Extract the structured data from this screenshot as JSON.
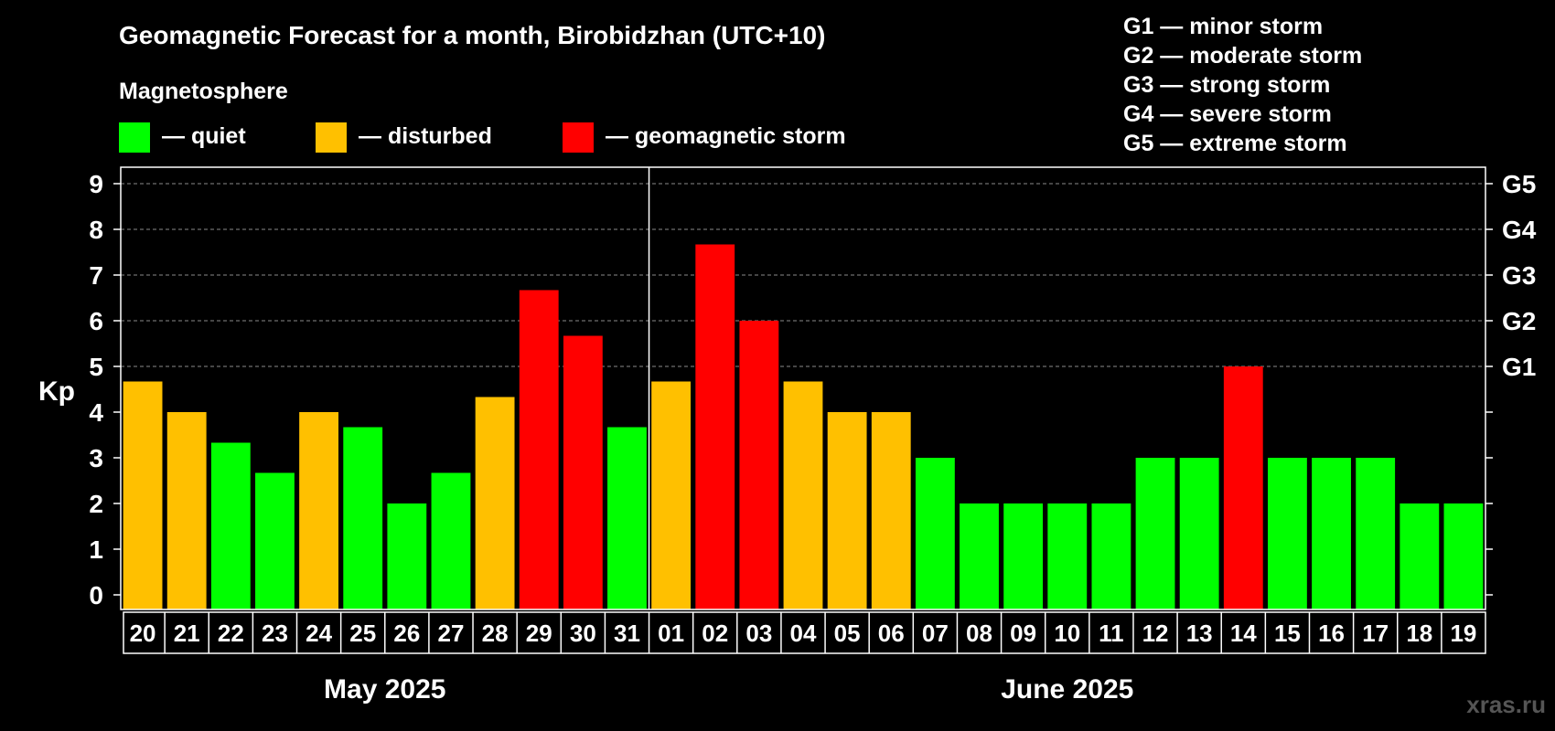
{
  "colors": {
    "quiet": "#00ff00",
    "disturbed": "#ffc000",
    "storm": "#ff0000",
    "background": "#000000",
    "text": "#ffffff"
  },
  "chart_data": {
    "type": "bar",
    "title": "Geomagnetic Forecast for a month, Birobidzhan (UTC+10)",
    "ylabel": "Kp",
    "ylim": [
      0,
      9
    ],
    "yticks": [
      0,
      1,
      2,
      3,
      4,
      5,
      6,
      7,
      8,
      9
    ],
    "right_axis": [
      {
        "kp": 5,
        "label": "G1"
      },
      {
        "kp": 6,
        "label": "G2"
      },
      {
        "kp": 7,
        "label": "G3"
      },
      {
        "kp": 8,
        "label": "G4"
      },
      {
        "kp": 9,
        "label": "G5"
      }
    ],
    "legend_title": "Magnetosphere",
    "legend": [
      {
        "key": "quiet",
        "label": "— quiet"
      },
      {
        "key": "disturbed",
        "label": "— disturbed"
      },
      {
        "key": "storm",
        "label": "— geomagnetic storm"
      }
    ],
    "g_scale": [
      "G1 — minor storm",
      "G2 — moderate storm",
      "G3 — strong storm",
      "G4 — severe storm",
      "G5 — extreme storm"
    ],
    "months": [
      {
        "label": "May 2025",
        "start": 0,
        "end": 11
      },
      {
        "label": "June 2025",
        "start": 12,
        "end": 30
      }
    ],
    "categories": [
      "20",
      "21",
      "22",
      "23",
      "24",
      "25",
      "26",
      "27",
      "28",
      "29",
      "30",
      "31",
      "01",
      "02",
      "03",
      "04",
      "05",
      "06",
      "07",
      "08",
      "09",
      "10",
      "11",
      "12",
      "13",
      "14",
      "15",
      "16",
      "17",
      "18",
      "19"
    ],
    "values": [
      4.67,
      4.0,
      3.33,
      2.67,
      4.0,
      3.67,
      2.0,
      2.67,
      4.33,
      6.67,
      5.67,
      3.67,
      4.67,
      7.67,
      6.0,
      4.67,
      4.0,
      4.0,
      3.0,
      2.0,
      2.0,
      2.0,
      2.0,
      3.0,
      3.0,
      5.0,
      3.0,
      3.0,
      3.0,
      2.0,
      2.0
    ],
    "status": [
      "disturbed",
      "disturbed",
      "quiet",
      "quiet",
      "disturbed",
      "quiet",
      "quiet",
      "quiet",
      "disturbed",
      "storm",
      "storm",
      "quiet",
      "disturbed",
      "storm",
      "storm",
      "disturbed",
      "disturbed",
      "disturbed",
      "quiet",
      "quiet",
      "quiet",
      "quiet",
      "quiet",
      "quiet",
      "quiet",
      "storm",
      "quiet",
      "quiet",
      "quiet",
      "quiet",
      "quiet"
    ],
    "watermark": "xras.ru"
  }
}
